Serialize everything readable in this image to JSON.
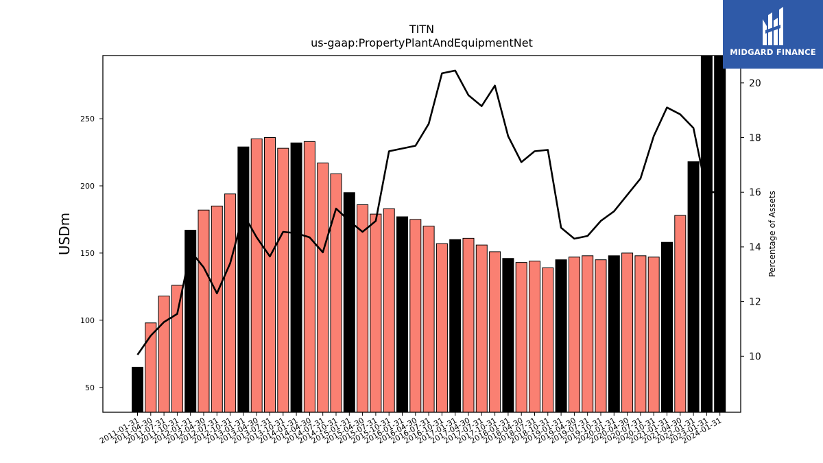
{
  "brand": {
    "name": "MIDGARD FINANCE",
    "logo_color": "#2f5aa8"
  },
  "chart_data": {
    "type": "bar",
    "title": "TITN",
    "subtitle": "us-gaap:PropertyPlantAndEquipmentNet",
    "ylabel": "USDm",
    "y2label": "Percentage of Assets",
    "ylim": [
      31.5,
      297
    ],
    "y2lim": [
      7.95,
      21.0
    ],
    "yticks": [
      50,
      100,
      150,
      200,
      250
    ],
    "y2ticks": [
      10,
      12,
      14,
      16,
      18,
      20
    ],
    "bar_colors": {
      "fiscal_year_end": "#000000",
      "interim": "#fa8072"
    },
    "line_color": "#000000",
    "categories": [
      "2011-01-31",
      "2011-04-30",
      "2011-07-31",
      "2011-10-31",
      "2012-01-31",
      "2012-04-30",
      "2012-07-31",
      "2012-10-31",
      "2013-01-31",
      "2013-04-30",
      "2013-07-31",
      "2013-10-31",
      "2014-01-31",
      "2014-04-30",
      "2014-07-31",
      "2014-10-31",
      "2015-01-31",
      "2015-04-30",
      "2015-07-31",
      "2015-10-31",
      "2016-01-31",
      "2016-04-30",
      "2016-07-31",
      "2016-10-31",
      "2017-01-31",
      "2017-04-30",
      "2017-07-31",
      "2017-10-31",
      "2018-01-31",
      "2018-04-30",
      "2018-07-31",
      "2018-10-31",
      "2019-01-31",
      "2019-04-30",
      "2019-07-31",
      "2019-10-31",
      "2020-01-31",
      "2020-04-30",
      "2020-07-31",
      "2020-10-31",
      "2021-01-31",
      "2021-04-30",
      "2022-01-31",
      "2023-01-31",
      "2024-01-31"
    ],
    "fiscal_year_end": [
      true,
      false,
      false,
      false,
      true,
      false,
      false,
      false,
      true,
      false,
      false,
      false,
      true,
      false,
      false,
      false,
      true,
      false,
      false,
      false,
      true,
      false,
      false,
      false,
      true,
      false,
      false,
      false,
      true,
      false,
      false,
      false,
      true,
      false,
      false,
      false,
      true,
      false,
      false,
      false,
      true,
      false,
      true,
      true,
      true
    ],
    "series": [
      {
        "type": "bar",
        "values": [
          65,
          98,
          118,
          126,
          167,
          182,
          185,
          194,
          229,
          235,
          236,
          228,
          232,
          233,
          217,
          209,
          195,
          186,
          179,
          183,
          177,
          175,
          170,
          157,
          160,
          161,
          156,
          151,
          146,
          143,
          144,
          139,
          145,
          147,
          148,
          145,
          148,
          150,
          148,
          147,
          158,
          178,
          218,
          297,
          297
        ]
      },
      {
        "type": "line",
        "axis": "right",
        "values": [
          10.05,
          10.75,
          11.25,
          11.55,
          13.85,
          13.25,
          12.3,
          13.4,
          15.2,
          14.35,
          13.65,
          14.55,
          14.5,
          14.35,
          13.8,
          15.4,
          14.95,
          14.55,
          14.95,
          17.5,
          17.6,
          17.7,
          18.5,
          20.35,
          20.45,
          19.55,
          19.15,
          19.9,
          18.05,
          17.1,
          17.5,
          17.55,
          14.7,
          14.3,
          14.4,
          14.95,
          15.3,
          15.9,
          16.5,
          18.05,
          19.1,
          18.85,
          18.35,
          16.0,
          16.0
        ]
      }
    ]
  }
}
